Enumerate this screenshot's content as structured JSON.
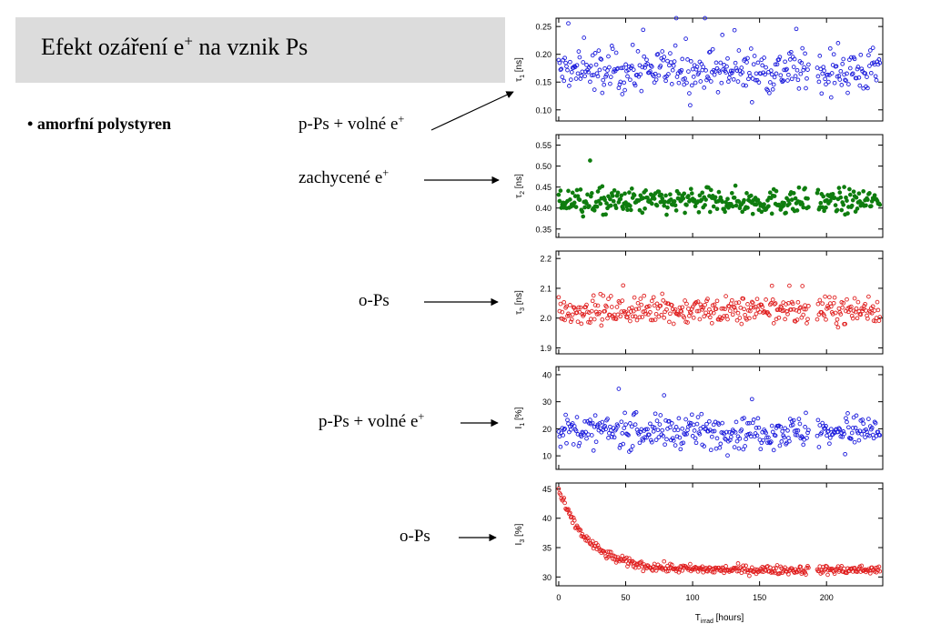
{
  "slide": {
    "title_main": "Efekt ozáření e",
    "title_sup": "+",
    "title_end": " na vznik Ps",
    "bullet_mark": "• ",
    "bullet_text": "amorfní polystyren"
  },
  "annotations": [
    {
      "main": "p-Ps + volné e",
      "sup": "+"
    },
    {
      "main": "zachycené e",
      "sup": "+"
    },
    {
      "main": "o-Ps",
      "sup": ""
    },
    {
      "main": "p-Ps + volné e",
      "sup": "+"
    },
    {
      "main": "o-Ps",
      "sup": ""
    }
  ],
  "chart_data": [
    {
      "type": "scatter",
      "ylabel_main": "τ",
      "ylabel_sub": "1",
      "ylabel_unit": " [ns]",
      "ylim": [
        0.08,
        0.265
      ],
      "yticks": [
        "0.10",
        "0.15",
        "0.20",
        "0.25"
      ],
      "xlim": [
        -2,
        242
      ],
      "color": "#1a1adc",
      "marker": "open-circle",
      "trend": {
        "base": 0.17,
        "amp": 0,
        "tau": 1
      },
      "noise": 0.028
    },
    {
      "type": "scatter",
      "ylabel_main": "τ",
      "ylabel_sub": "2",
      "ylabel_unit": " [ns]",
      "ylim": [
        0.33,
        0.575
      ],
      "yticks": [
        "0.35",
        "0.40",
        "0.45",
        "0.50",
        "0.55"
      ],
      "xlim": [
        -2,
        242
      ],
      "color": "#0f7d0f",
      "marker": "filled-circle",
      "trend": {
        "base": 0.415,
        "amp": 0,
        "tau": 1
      },
      "noise": 0.022
    },
    {
      "type": "scatter",
      "ylabel_main": "τ",
      "ylabel_sub": "3",
      "ylabel_unit": " [ns]",
      "ylim": [
        1.88,
        2.225
      ],
      "yticks": [
        "1.9",
        "2.0",
        "2.1",
        "2.2"
      ],
      "xlim": [
        -2,
        242
      ],
      "color": "#e02020",
      "marker": "open-circle",
      "trend": {
        "base": 2.025,
        "amp": 0,
        "tau": 1
      },
      "noise": 0.032
    },
    {
      "type": "scatter",
      "ylabel_main": "I",
      "ylabel_sub": "1",
      "ylabel_unit": " [%]",
      "ylim": [
        5,
        43
      ],
      "yticks": [
        "10",
        "20",
        "30",
        "40"
      ],
      "xlim": [
        -2,
        242
      ],
      "color": "#1a1adc",
      "marker": "open-circle",
      "trend": {
        "base": 19,
        "amp": 0,
        "tau": 1
      },
      "noise": 4.2
    },
    {
      "type": "scatter",
      "ylabel_main": "I",
      "ylabel_sub": "3",
      "ylabel_unit": " [%]",
      "ylim": [
        28.5,
        46
      ],
      "yticks": [
        "30",
        "35",
        "40",
        "45"
      ],
      "xlim": [
        -2,
        242
      ],
      "xticks": [
        "0",
        "50",
        "100",
        "150",
        "200"
      ],
      "xlabel_main": "T",
      "xlabel_sub": "irrad",
      "xlabel_unit": " [hours]",
      "color": "#e02020",
      "marker": "open-circle",
      "trend": {
        "base": 31.2,
        "amp": 13.5,
        "tau": 22
      },
      "noise": 0.55
    }
  ]
}
